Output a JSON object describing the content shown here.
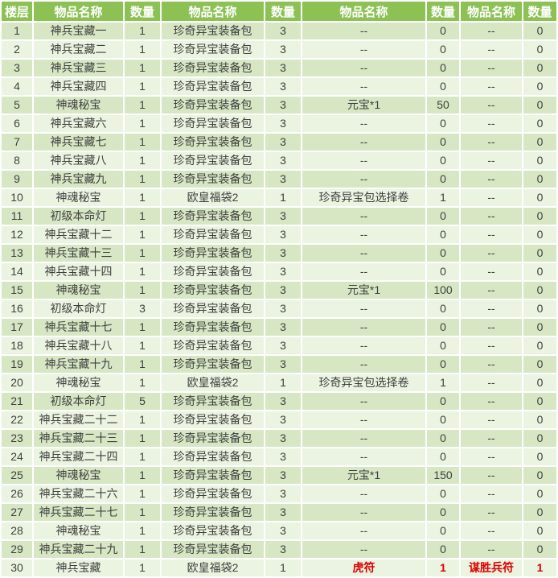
{
  "colors": {
    "header_bg": "#8cc153",
    "header_text": "#ffffff",
    "row_odd_bg": "#d7e7c4",
    "row_even_bg": "#ebf4e0",
    "cell_text": "#3f3f3f",
    "highlight_text": "#dd0000",
    "grid": "#ffffff"
  },
  "table": {
    "columns": [
      "楼层",
      "物品名称",
      "数量",
      "物品名称",
      "数量",
      "物品名称",
      "数量",
      "物品名称",
      "数量"
    ],
    "rows": [
      {
        "cells": [
          "1",
          "神兵宝藏一",
          "1",
          "珍奇异宝装备包",
          "3",
          "--",
          "0",
          "--",
          "0"
        ]
      },
      {
        "cells": [
          "2",
          "神兵宝藏二",
          "1",
          "珍奇异宝装备包",
          "3",
          "--",
          "0",
          "--",
          "0"
        ]
      },
      {
        "cells": [
          "3",
          "神兵宝藏三",
          "1",
          "珍奇异宝装备包",
          "3",
          "--",
          "0",
          "--",
          "0"
        ]
      },
      {
        "cells": [
          "4",
          "神兵宝藏四",
          "1",
          "珍奇异宝装备包",
          "3",
          "--",
          "0",
          "--",
          "0"
        ]
      },
      {
        "cells": [
          "5",
          "神魂秘宝",
          "1",
          "珍奇异宝装备包",
          "3",
          "元宝*1",
          "50",
          "--",
          "0"
        ]
      },
      {
        "cells": [
          "6",
          "神兵宝藏六",
          "1",
          "珍奇异宝装备包",
          "3",
          "--",
          "0",
          "--",
          "0"
        ]
      },
      {
        "cells": [
          "7",
          "神兵宝藏七",
          "1",
          "珍奇异宝装备包",
          "3",
          "--",
          "0",
          "--",
          "0"
        ]
      },
      {
        "cells": [
          "8",
          "神兵宝藏八",
          "1",
          "珍奇异宝装备包",
          "3",
          "--",
          "0",
          "--",
          "0"
        ]
      },
      {
        "cells": [
          "9",
          "神兵宝藏九",
          "1",
          "珍奇异宝装备包",
          "3",
          "--",
          "0",
          "--",
          "0"
        ]
      },
      {
        "cells": [
          "10",
          "神魂秘宝",
          "1",
          "欧皇福袋2",
          "1",
          "珍奇异宝包选择卷",
          "1",
          "--",
          "0"
        ]
      },
      {
        "cells": [
          "11",
          "初级本命灯",
          "1",
          "珍奇异宝装备包",
          "3",
          "--",
          "0",
          "--",
          "0"
        ]
      },
      {
        "cells": [
          "12",
          "神兵宝藏十二",
          "1",
          "珍奇异宝装备包",
          "3",
          "--",
          "0",
          "--",
          "0"
        ]
      },
      {
        "cells": [
          "13",
          "神兵宝藏十三",
          "1",
          "珍奇异宝装备包",
          "3",
          "--",
          "0",
          "--",
          "0"
        ]
      },
      {
        "cells": [
          "14",
          "神兵宝藏十四",
          "1",
          "珍奇异宝装备包",
          "3",
          "--",
          "0",
          "--",
          "0"
        ]
      },
      {
        "cells": [
          "15",
          "神魂秘宝",
          "1",
          "珍奇异宝装备包",
          "3",
          "元宝*1",
          "100",
          "--",
          "0"
        ]
      },
      {
        "cells": [
          "16",
          "初级本命灯",
          "3",
          "珍奇异宝装备包",
          "3",
          "--",
          "0",
          "--",
          "0"
        ]
      },
      {
        "cells": [
          "17",
          "神兵宝藏十七",
          "1",
          "珍奇异宝装备包",
          "3",
          "--",
          "0",
          "--",
          "0"
        ]
      },
      {
        "cells": [
          "18",
          "神兵宝藏十八",
          "1",
          "珍奇异宝装备包",
          "3",
          "--",
          "0",
          "--",
          "0"
        ]
      },
      {
        "cells": [
          "19",
          "神兵宝藏十九",
          "1",
          "珍奇异宝装备包",
          "3",
          "--",
          "0",
          "--",
          "0"
        ]
      },
      {
        "cells": [
          "20",
          "神魂秘宝",
          "1",
          "欧皇福袋2",
          "1",
          "珍奇异宝包选择卷",
          "1",
          "--",
          "0"
        ]
      },
      {
        "cells": [
          "21",
          "初级本命灯",
          "5",
          "珍奇异宝装备包",
          "3",
          "--",
          "0",
          "--",
          "0"
        ]
      },
      {
        "cells": [
          "22",
          "神兵宝藏二十二",
          "1",
          "珍奇异宝装备包",
          "3",
          "--",
          "0",
          "--",
          "0"
        ]
      },
      {
        "cells": [
          "23",
          "神兵宝藏二十三",
          "1",
          "珍奇异宝装备包",
          "3",
          "--",
          "0",
          "--",
          "0"
        ]
      },
      {
        "cells": [
          "24",
          "神兵宝藏二十四",
          "1",
          "珍奇异宝装备包",
          "3",
          "--",
          "0",
          "--",
          "0"
        ]
      },
      {
        "cells": [
          "25",
          "神魂秘宝",
          "1",
          "珍奇异宝装备包",
          "3",
          "元宝*1",
          "150",
          "--",
          "0"
        ]
      },
      {
        "cells": [
          "26",
          "神兵宝藏二十六",
          "1",
          "珍奇异宝装备包",
          "3",
          "--",
          "0",
          "--",
          "0"
        ]
      },
      {
        "cells": [
          "27",
          "神兵宝藏二十七",
          "1",
          "珍奇异宝装备包",
          "3",
          "--",
          "0",
          "--",
          "0"
        ]
      },
      {
        "cells": [
          "28",
          "神魂秘宝",
          "1",
          "珍奇异宝装备包",
          "3",
          "--",
          "0",
          "--",
          "0"
        ]
      },
      {
        "cells": [
          "29",
          "神兵宝藏二十九",
          "1",
          "珍奇异宝装备包",
          "3",
          "--",
          "0",
          "--",
          "0"
        ]
      },
      {
        "cells": [
          "30",
          "神兵宝藏",
          "1",
          "欧皇福袋2",
          "1",
          "虎符",
          "1",
          "谋胜兵符",
          "1"
        ],
        "red_cells": [
          5,
          6,
          7,
          8
        ]
      }
    ]
  }
}
